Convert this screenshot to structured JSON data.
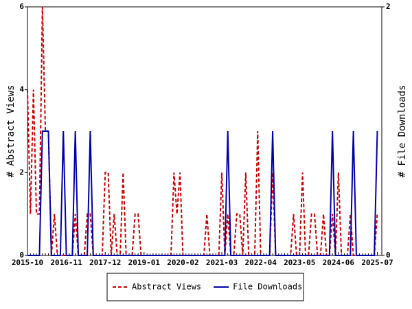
{
  "chart_data": {
    "type": "line",
    "y_label": "# Abstract Views",
    "y2_label": "# File Downloads",
    "categories": [
      "2015-10",
      null,
      null,
      null,
      null,
      null,
      null,
      null,
      null,
      null,
      null,
      null,
      null,
      "2016-11",
      null,
      null,
      null,
      null,
      null,
      null,
      null,
      null,
      null,
      null,
      null,
      null,
      "2017-12",
      null,
      null,
      null,
      null,
      null,
      null,
      null,
      null,
      null,
      null,
      null,
      null,
      "2019-01",
      null,
      null,
      null,
      null,
      null,
      null,
      null,
      null,
      null,
      null,
      null,
      null,
      "2020-02",
      null,
      null,
      null,
      null,
      null,
      null,
      null,
      null,
      null,
      null,
      null,
      null,
      "2021-03",
      null,
      null,
      null,
      null,
      null,
      null,
      null,
      null,
      null,
      null,
      null,
      null,
      "2022-04",
      null,
      null,
      null,
      null,
      null,
      null,
      null,
      null,
      null,
      null,
      null,
      null,
      "2023-05",
      null,
      null,
      null,
      null,
      null,
      null,
      null,
      null,
      null,
      null,
      null,
      null,
      "2024-06",
      null,
      null,
      null,
      null,
      null,
      null,
      null,
      null,
      null,
      null,
      null,
      null,
      "2025-07"
    ],
    "series": [
      {
        "name": "Abstract Views",
        "color": "#cc0000",
        "dash": true,
        "axis": "y",
        "values": [
          4,
          1,
          4,
          1,
          1,
          6,
          3,
          3,
          0,
          1,
          0,
          0,
          0,
          0,
          0,
          0,
          1,
          0,
          0,
          0,
          1,
          1,
          0,
          0,
          0,
          0,
          2,
          2,
          0,
          1,
          0,
          0,
          2,
          0,
          0,
          0,
          1,
          1,
          0,
          0,
          0,
          0,
          0,
          0,
          0,
          0,
          0,
          0,
          0,
          2,
          1,
          2,
          0,
          0,
          0,
          0,
          0,
          0,
          0,
          0,
          1,
          0,
          0,
          0,
          0,
          2,
          0,
          1,
          0,
          0,
          1,
          1,
          0,
          2,
          0,
          0,
          0,
          3,
          0,
          0,
          0,
          0,
          2,
          0,
          0,
          0,
          0,
          0,
          0,
          1,
          0,
          0,
          2,
          0,
          0,
          1,
          1,
          0,
          0,
          1,
          0,
          0,
          1,
          0,
          2,
          0,
          0,
          0,
          1,
          0,
          0,
          0,
          0,
          0,
          0,
          0,
          0,
          1
        ]
      },
      {
        "name": "File Downloads",
        "color": "#0000aa",
        "dash": false,
        "axis": "y2",
        "values": [
          0,
          0,
          0,
          0,
          0,
          1,
          1,
          1,
          0,
          0,
          0,
          0,
          1,
          0,
          0,
          0,
          1,
          0,
          0,
          0,
          0,
          1,
          0,
          0,
          0,
          0,
          0,
          0,
          0,
          0,
          0,
          0,
          0,
          0,
          0,
          0,
          0,
          0,
          0,
          0,
          0,
          0,
          0,
          0,
          0,
          0,
          0,
          0,
          0,
          0,
          0,
          0,
          0,
          0,
          0,
          0,
          0,
          0,
          0,
          0,
          0,
          0,
          0,
          0,
          0,
          0,
          0,
          1,
          0,
          0,
          0,
          0,
          0,
          0,
          0,
          0,
          0,
          0,
          0,
          0,
          0,
          0,
          1,
          0,
          0,
          0,
          0,
          0,
          0,
          0,
          0,
          0,
          0,
          0,
          0,
          0,
          0,
          0,
          0,
          0,
          0,
          0,
          1,
          0,
          0,
          0,
          0,
          0,
          0,
          1,
          0,
          0,
          0,
          0,
          0,
          0,
          0,
          1
        ]
      }
    ],
    "ylim": [
      0,
      6
    ],
    "yticks": [
      0,
      2,
      4,
      6
    ],
    "y2lim": [
      0,
      2
    ],
    "y2ticks": [
      0,
      2
    ],
    "grid": false,
    "legend": "bottom"
  }
}
